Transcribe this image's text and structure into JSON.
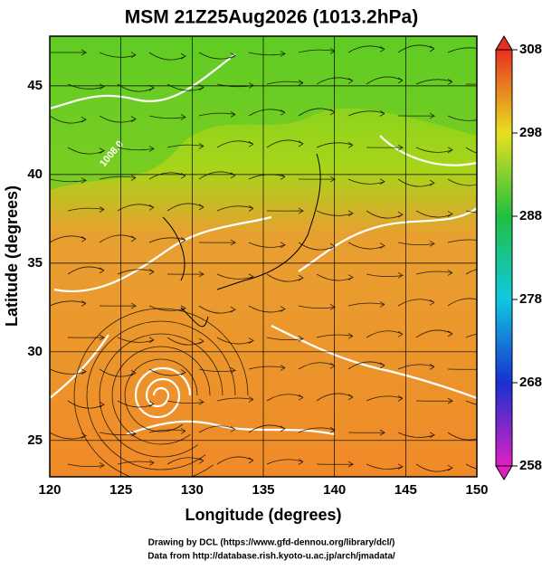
{
  "title": "MSM 21Z25Aug2026 (1013.2hPa)",
  "map": {
    "xlabel": "Longitude (degrees)",
    "ylabel": "Latitude  (degrees)",
    "xlim": [
      120,
      150
    ],
    "ylim": [
      22.95,
      47.8
    ],
    "xticks": [
      120,
      125,
      130,
      135,
      140,
      145,
      150
    ],
    "yticks": [
      25,
      30,
      35,
      40,
      45
    ],
    "colorbar": {
      "lim": [
        258,
        308
      ],
      "ticks": [
        258,
        268,
        278,
        288,
        298,
        308
      ]
    },
    "contour_label": "1008.0"
  },
  "credits": [
    "Drawing by DCL (https://www.gfd-dennou.org/library/dcl/)",
    "Data from http://database.rish.kyoto-u.ac.jp/arch/jmadata/"
  ]
}
